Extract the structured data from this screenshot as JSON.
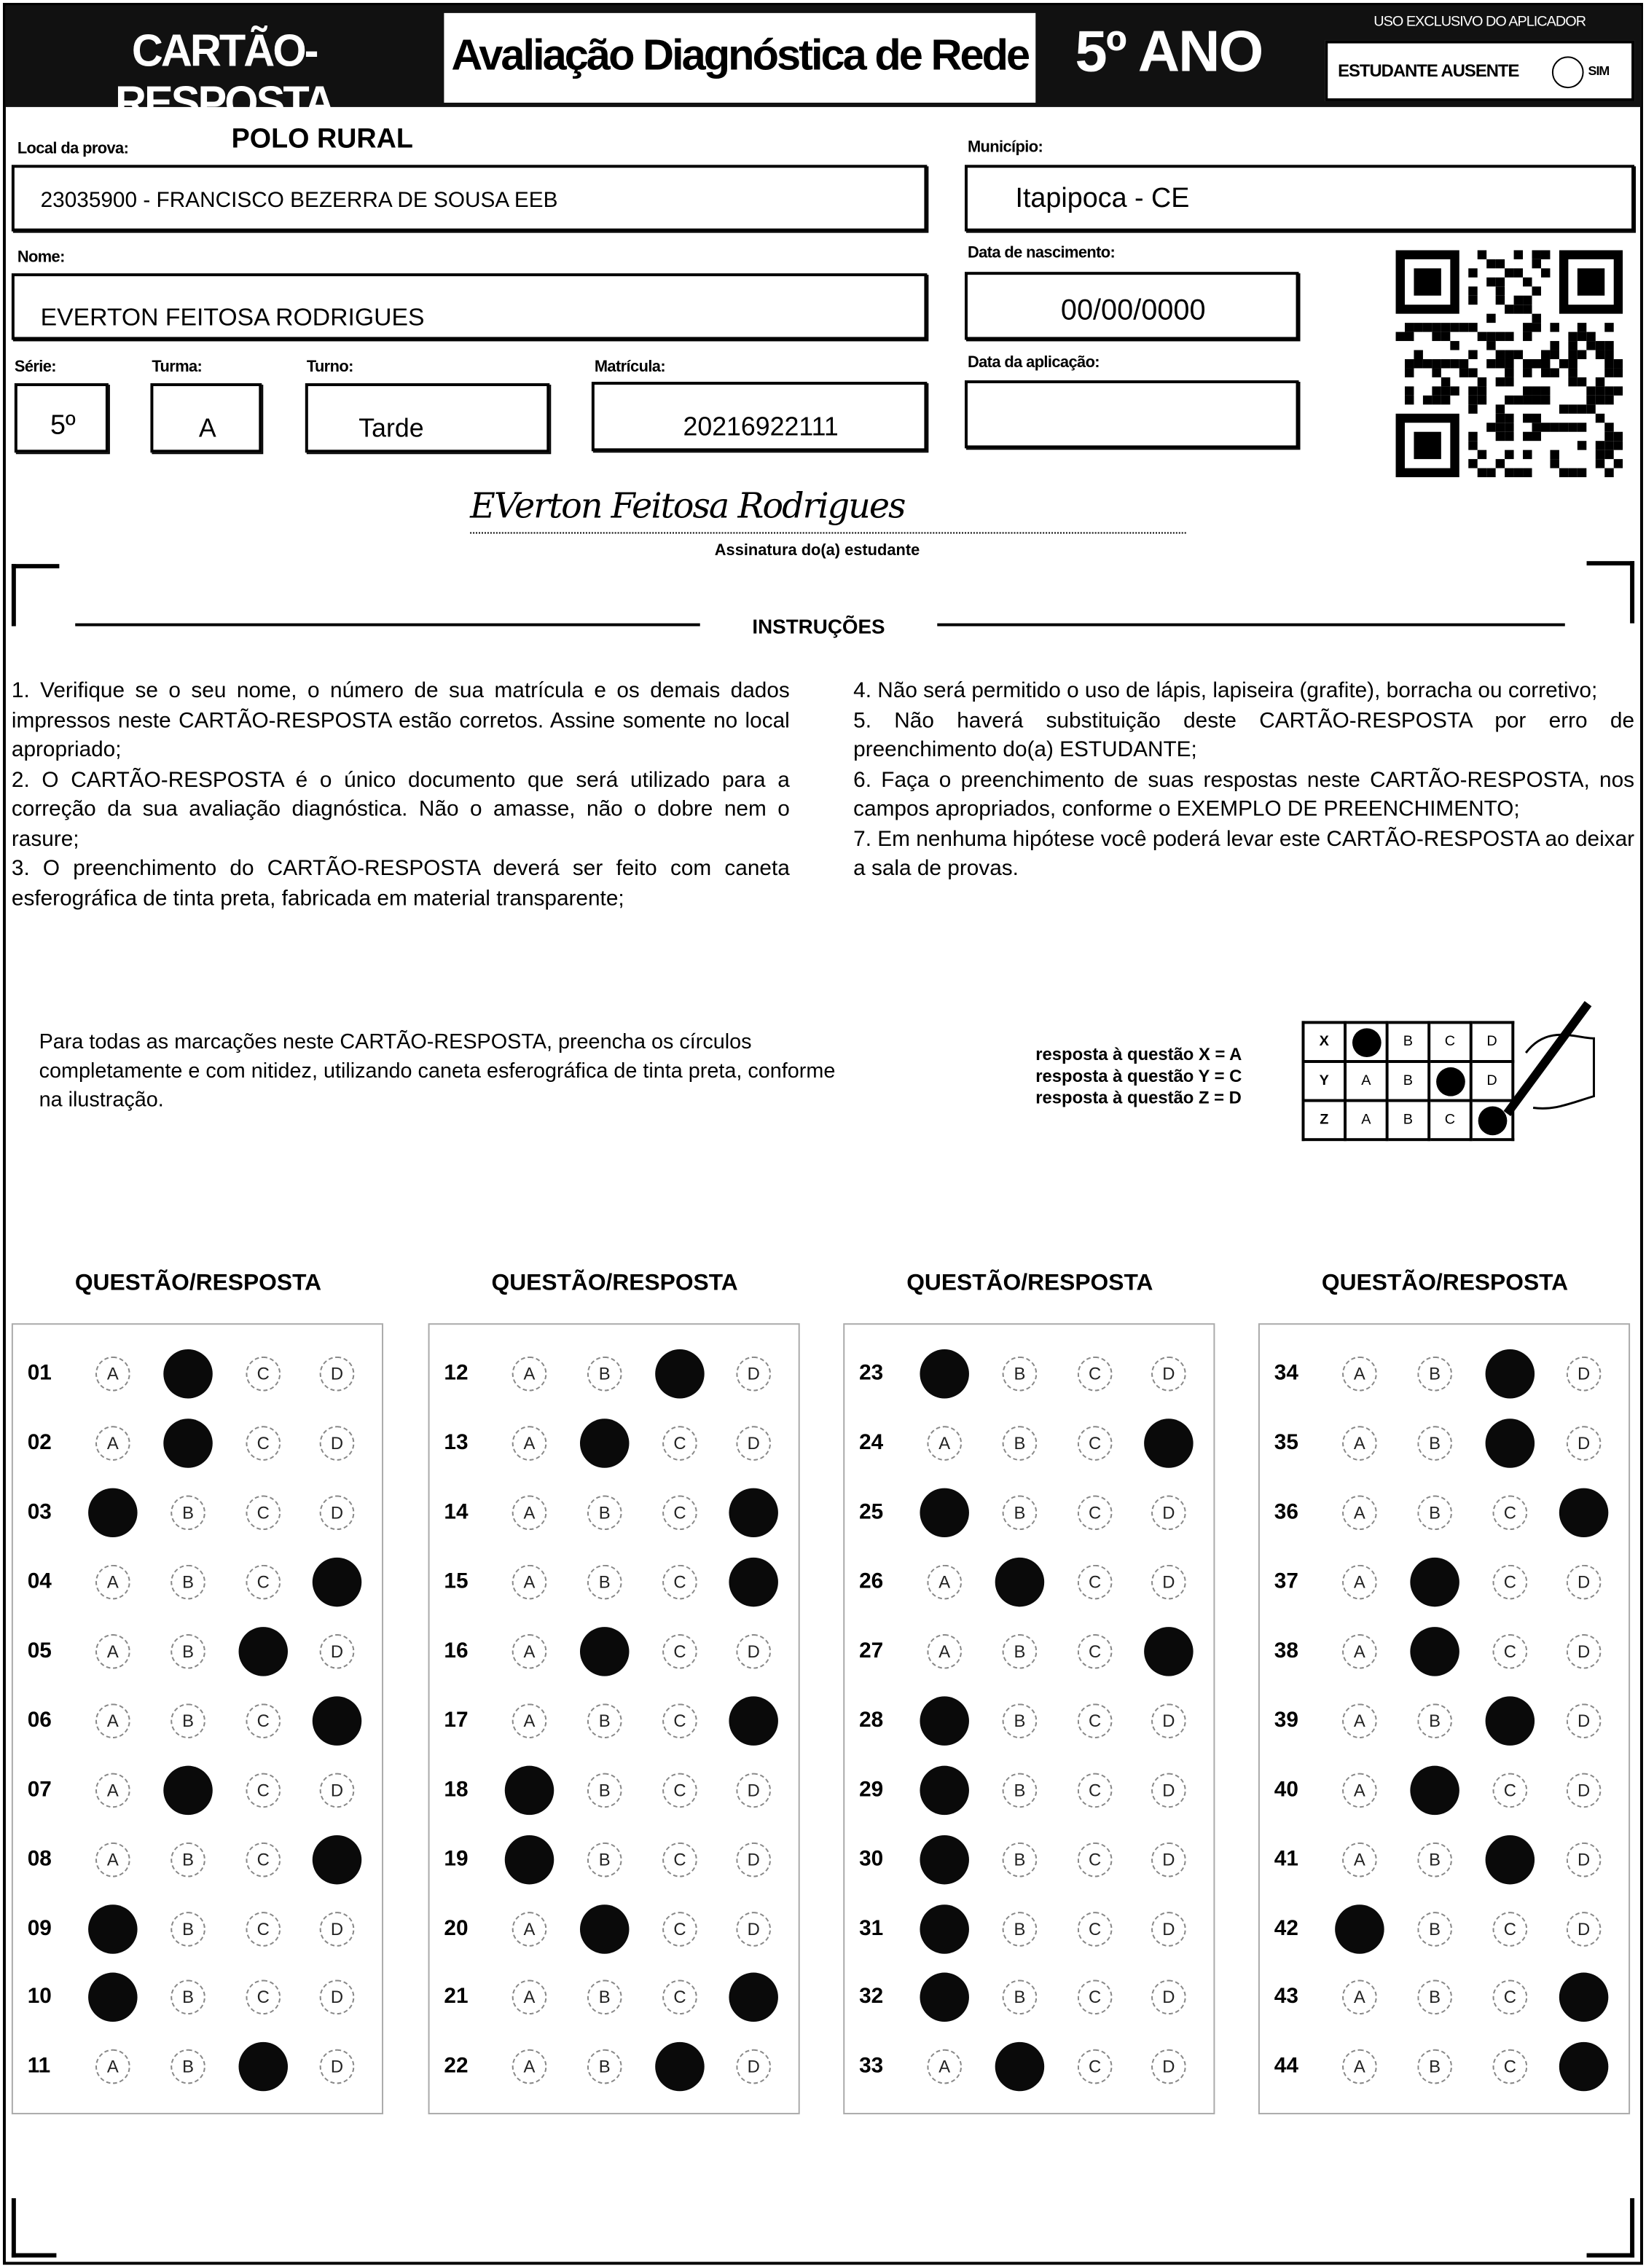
{
  "header": {
    "card_title": "CARTÃO-RESPOSTA",
    "exam_title": "Avaliação Diagnóstica de Rede",
    "grade_banner": "5º ANO",
    "applicator_only": "USO EXCLUSIVO DO APLICADOR",
    "absent_label": "ESTUDANTE AUSENTE",
    "absent_option": "SIM"
  },
  "fields": {
    "local_label": "Local da prova:",
    "polo": "POLO RURAL",
    "local_value": "23035900 - FRANCISCO BEZERRA DE SOUSA EEB",
    "municipio_label": "Município:",
    "municipio_value": "Itapipoca - CE",
    "nome_label": "Nome:",
    "nome_value": "EVERTON FEITOSA RODRIGUES",
    "nascimento_label": "Data de nascimento:",
    "nascimento_value": "00/00/0000",
    "serie_label": "Série:",
    "serie_value": "5º",
    "turma_label": "Turma:",
    "turma_value": "A",
    "turno_label": "Turno:",
    "turno_value": "Tarde",
    "matricula_label": "Matrícula:",
    "matricula_value": "20216922111",
    "aplicacao_label": "Data da aplicação:",
    "aplicacao_value": ""
  },
  "signature": {
    "handwritten": "EVerton Feitosa Rodrigues",
    "caption": "Assinatura do(a) estudante"
  },
  "instructions": {
    "title": "INSTRUÇÕES",
    "left": [
      "1. Verifique se o seu nome, o número de sua matrícula e os demais dados impressos neste CARTÃO-RESPOSTA estão corretos. Assine somente no local apropriado;",
      "2. O CARTÃO-RESPOSTA é o único documento que será utilizado para a correção da sua avaliação diagnóstica. Não o amasse, não o dobre nem o rasure;",
      "3. O preenchimento do CARTÃO-RESPOSTA deverá ser feito com caneta esferográfica de tinta preta, fabricada em material transparente;"
    ],
    "right": [
      "4. Não será permitido o uso de lápis, lapiseira (grafite), borracha ou corretivo;",
      "5. Não haverá substituição deste CARTÃO-RESPOSTA por erro de preenchimento do(a) ESTUDANTE;",
      "6. Faça o preenchimento de suas respostas neste CARTÃO-RESPOSTA, nos campos apropriados, conforme o EXEMPLO DE PREENCHIMENTO;",
      "7. Em nenhuma hipótese você poderá levar este CARTÃO-RESPOSTA ao deixar a sala de provas."
    ]
  },
  "example": {
    "text": "Para todas as marcações neste CARTÃO-RESPOSTA, preencha os círculos completamente e com nitidez, utilizando caneta esferográfica de tinta preta, conforme na ilustração.",
    "legend": [
      "resposta à questão X = A",
      "resposta à questão Y = C",
      "resposta à questão Z = D"
    ],
    "rows": [
      {
        "q": "X",
        "marked": "A"
      },
      {
        "q": "Y",
        "marked": "C"
      },
      {
        "q": "Z",
        "marked": "D"
      }
    ]
  },
  "answers": {
    "column_header": "QUESTÃO/RESPOSTA",
    "options": [
      "A",
      "B",
      "C",
      "D"
    ],
    "columns": [
      [
        {
          "n": "01",
          "m": "B"
        },
        {
          "n": "02",
          "m": "B"
        },
        {
          "n": "03",
          "m": "A"
        },
        {
          "n": "04",
          "m": "D"
        },
        {
          "n": "05",
          "m": "C"
        },
        {
          "n": "06",
          "m": "D"
        },
        {
          "n": "07",
          "m": "B"
        },
        {
          "n": "08",
          "m": "D"
        },
        {
          "n": "09",
          "m": "A"
        },
        {
          "n": "10",
          "m": "A"
        },
        {
          "n": "11",
          "m": "C"
        }
      ],
      [
        {
          "n": "12",
          "m": "C"
        },
        {
          "n": "13",
          "m": "B"
        },
        {
          "n": "14",
          "m": "D"
        },
        {
          "n": "15",
          "m": "D"
        },
        {
          "n": "16",
          "m": "B"
        },
        {
          "n": "17",
          "m": "D"
        },
        {
          "n": "18",
          "m": "A"
        },
        {
          "n": "19",
          "m": "A"
        },
        {
          "n": "20",
          "m": "B"
        },
        {
          "n": "21",
          "m": "D"
        },
        {
          "n": "22",
          "m": "C"
        }
      ],
      [
        {
          "n": "23",
          "m": "A"
        },
        {
          "n": "24",
          "m": "D"
        },
        {
          "n": "25",
          "m": "A"
        },
        {
          "n": "26",
          "m": "B"
        },
        {
          "n": "27",
          "m": "D"
        },
        {
          "n": "28",
          "m": "A"
        },
        {
          "n": "29",
          "m": "A"
        },
        {
          "n": "30",
          "m": "A"
        },
        {
          "n": "31",
          "m": "A"
        },
        {
          "n": "32",
          "m": "A"
        },
        {
          "n": "33",
          "m": "B"
        }
      ],
      [
        {
          "n": "34",
          "m": "C"
        },
        {
          "n": "35",
          "m": "C"
        },
        {
          "n": "36",
          "m": "D"
        },
        {
          "n": "37",
          "m": "B"
        },
        {
          "n": "38",
          "m": "B"
        },
        {
          "n": "39",
          "m": "C"
        },
        {
          "n": "40",
          "m": "B"
        },
        {
          "n": "41",
          "m": "C"
        },
        {
          "n": "42",
          "m": "A"
        },
        {
          "n": "43",
          "m": "D"
        },
        {
          "n": "44",
          "m": "D"
        }
      ]
    ]
  }
}
